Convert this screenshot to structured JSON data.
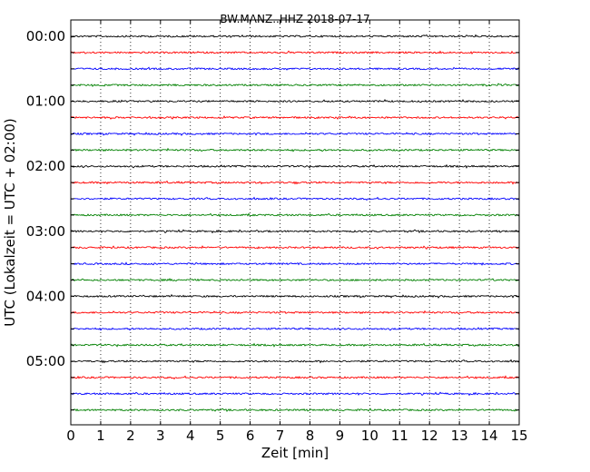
{
  "chart_data": {
    "type": "line",
    "title": "BW.MANZ..HHZ 2018-07-17",
    "xlabel": "Zeit  [min]",
    "ylabel": "UTC (Lokalzeit = UTC + 02:00)",
    "xlim": [
      0,
      15
    ],
    "x_ticks": [
      0,
      1,
      2,
      3,
      4,
      5,
      6,
      7,
      8,
      9,
      10,
      11,
      12,
      13,
      14,
      15
    ],
    "y_tick_labels": [
      "00:00",
      "01:00",
      "02:00",
      "03:00",
      "04:00",
      "05:00"
    ],
    "trace_interval_minutes": 15,
    "trace_count": 24,
    "colors": [
      "#000000",
      "#ff0000",
      "#0000ff",
      "#008000"
    ],
    "grid": "vertical-dotted"
  }
}
